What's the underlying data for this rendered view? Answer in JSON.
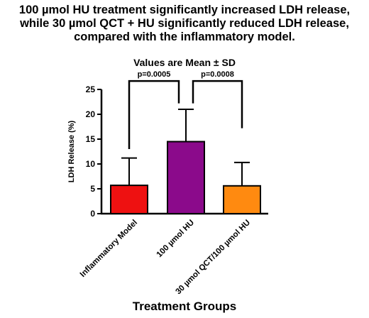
{
  "chart_data": {
    "type": "bar",
    "title": "100 µmol HU treatment significantly increased LDH release, while 30 µmol QCT + HU significantly reduced LDH release, compared with the inflammatory model.",
    "title_lines": [
      "100 µmol HU treatment significantly increased LDH release,",
      "while 30 µmol QCT + HU significantly reduced LDH release,",
      "compared with the inflammatory model."
    ],
    "subtitle": "Values are Mean ± SD",
    "xlabel": "Treatment Groups",
    "ylabel": "LDH Release (%)",
    "ylim": [
      0,
      25
    ],
    "yticks": [
      0,
      5,
      10,
      15,
      20,
      25
    ],
    "categories": [
      "Inflammatory Model",
      "100 µmol HU",
      "30 µmol QCT/100 µmol HU"
    ],
    "values": [
      5.7,
      14.5,
      5.6
    ],
    "sd": [
      5.5,
      6.5,
      4.7
    ],
    "colors": [
      "#ee1111",
      "#8b0a8b",
      "#ff8a10"
    ],
    "annotations": [
      {
        "from": 0,
        "to": 1,
        "label": "p=0.0005"
      },
      {
        "from": 1,
        "to": 2,
        "label": "p=0.0008"
      }
    ],
    "grid": false,
    "legend": "none"
  }
}
